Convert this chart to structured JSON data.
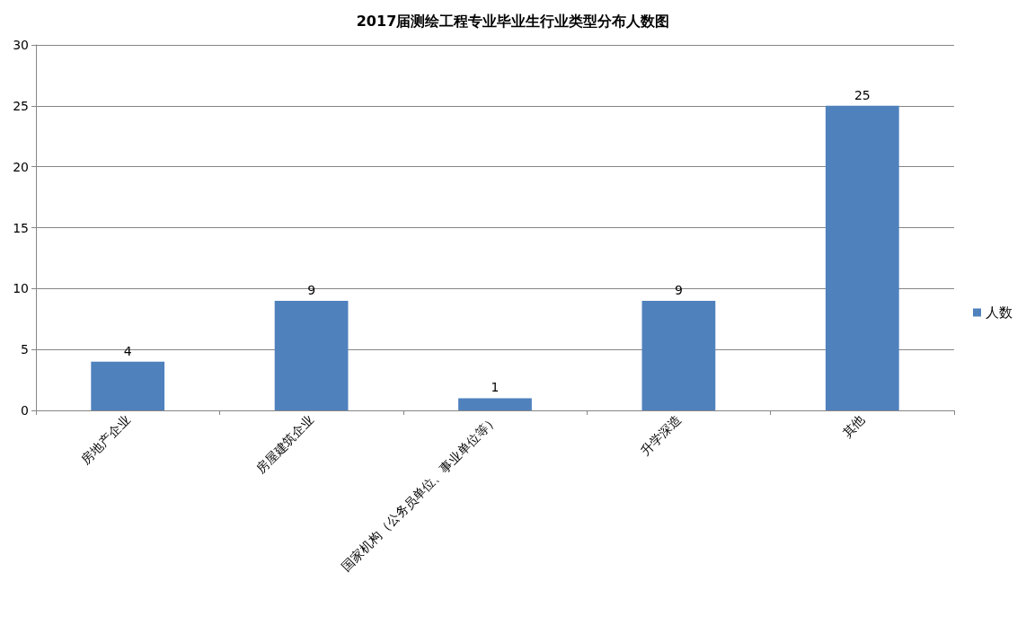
{
  "chart_data": {
    "type": "bar",
    "title": "2017届测绘工程专业毕业生行业类型分布人数图",
    "categories": [
      "房地产企业",
      "房屋建筑企业",
      "国家机构（公务员单位、事业单位等）",
      "升学深造",
      "其他"
    ],
    "series": [
      {
        "name": "人数",
        "color": "#4f81bd",
        "values": [
          4,
          9,
          1,
          9,
          25
        ]
      }
    ],
    "ylim": [
      0,
      30
    ],
    "yticks": [
      0,
      5,
      10,
      15,
      20,
      25,
      30
    ],
    "grid": "y",
    "legend": "right",
    "data_labels": true
  }
}
